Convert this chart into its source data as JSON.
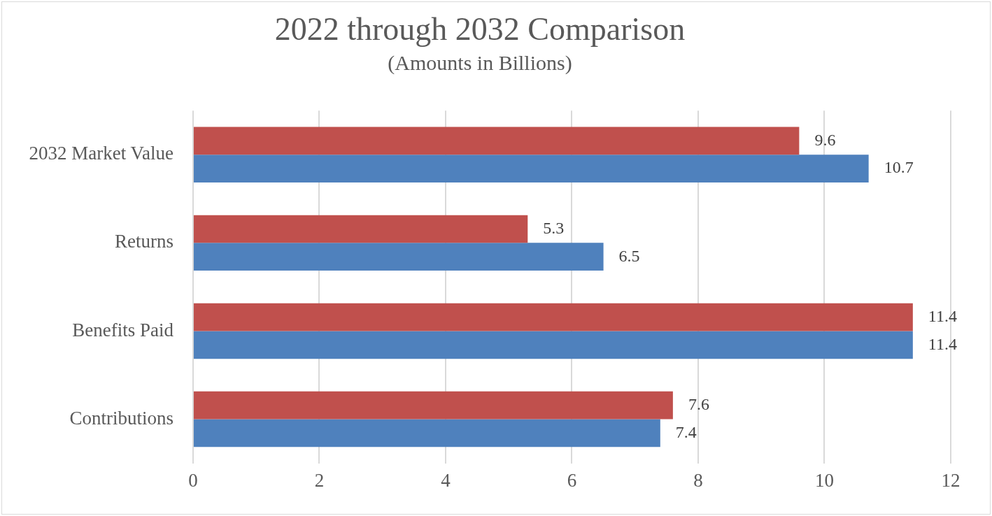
{
  "chart_data": {
    "type": "bar",
    "orientation": "horizontal",
    "title": "2022 through 2032 Comparison",
    "subtitle": "(Amounts in Billions)",
    "categories": [
      "2032 Market Value",
      "Returns",
      "Benefits Paid",
      "Contributions"
    ],
    "series": [
      {
        "color": "#c0504d",
        "values": [
          9.6,
          5.3,
          11.4,
          7.6
        ]
      },
      {
        "color": "#4f81bd",
        "values": [
          10.7,
          6.5,
          11.4,
          7.4
        ]
      }
    ],
    "xlim": [
      0,
      12
    ],
    "xticks": [
      0,
      2,
      4,
      6,
      8,
      10,
      12
    ],
    "grid": "x",
    "legend": false,
    "data_labels": true
  }
}
